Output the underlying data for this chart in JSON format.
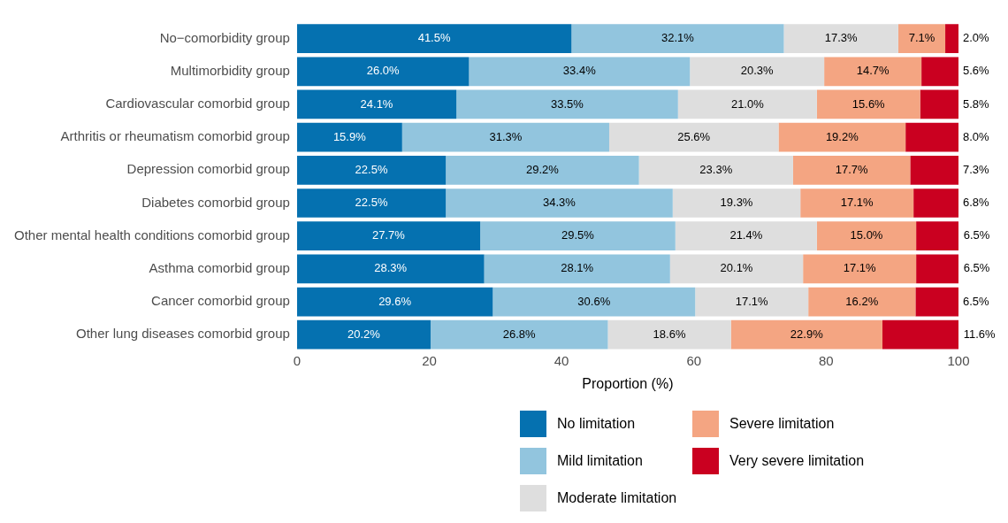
{
  "chart_data": {
    "type": "bar",
    "orientation": "horizontal",
    "stacked": true,
    "grid": false,
    "legend": "bottom",
    "xlabel": "Proportion (%)",
    "xlim": [
      0,
      100
    ],
    "xticks": [
      0,
      20,
      40,
      60,
      80,
      100
    ],
    "categories": [
      "No−comorbidity group",
      "Multimorbidity group",
      "Cardiovascular comorbid group",
      "Arthritis or rheumatism comorbid group",
      "Depression comorbid group",
      "Diabetes comorbid group",
      "Other mental health conditions comorbid group",
      "Asthma comorbid group",
      "Cancer comorbid group",
      "Other lung diseases comorbid group"
    ],
    "series": [
      {
        "name": "No limitation",
        "color": "#0571b0",
        "values": [
          41.5,
          26.0,
          24.1,
          15.9,
          22.5,
          22.5,
          27.7,
          28.3,
          29.6,
          20.2
        ],
        "value_labels": [
          "41.5%",
          "26.0%",
          "24.1%",
          "15.9%",
          "22.5%",
          "22.5%",
          "27.7%",
          "28.3%",
          "29.6%",
          "20.2%"
        ]
      },
      {
        "name": "Mild limitation",
        "color": "#92c5de",
        "values": [
          32.1,
          33.4,
          33.5,
          31.3,
          29.2,
          34.3,
          29.5,
          28.1,
          30.6,
          26.8
        ],
        "value_labels": [
          "32.1%",
          "33.4%",
          "33.5%",
          "31.3%",
          "29.2%",
          "34.3%",
          "29.5%",
          "28.1%",
          "30.6%",
          "26.8%"
        ]
      },
      {
        "name": "Moderate limitation",
        "color": "#dedede",
        "values": [
          17.3,
          20.3,
          21.0,
          25.6,
          23.3,
          19.3,
          21.4,
          20.1,
          17.1,
          18.6
        ],
        "value_labels": [
          "17.3%",
          "20.3%",
          "21.0%",
          "25.6%",
          "23.3%",
          "19.3%",
          "21.4%",
          "20.1%",
          "17.1%",
          "18.6%"
        ]
      },
      {
        "name": "Severe limitation",
        "color": "#f4a582",
        "values": [
          7.1,
          14.7,
          15.6,
          19.2,
          17.7,
          17.1,
          15.0,
          17.1,
          16.2,
          22.9
        ],
        "value_labels": [
          "7.1%",
          "14.7%",
          "15.6%",
          "19.2%",
          "17.7%",
          "17.1%",
          "15.0%",
          "17.1%",
          "16.2%",
          "22.9%"
        ]
      },
      {
        "name": "Very severe limitation",
        "color": "#ca0020",
        "values": [
          2.0,
          5.6,
          5.8,
          8.0,
          7.3,
          6.8,
          6.5,
          6.5,
          6.5,
          11.6
        ],
        "value_labels": [
          "2.0%",
          "5.6%",
          "5.8%",
          "8.0%",
          "7.3%",
          "6.8%",
          "6.5%",
          "6.5%",
          "6.5%",
          "11.6%"
        ]
      }
    ]
  }
}
